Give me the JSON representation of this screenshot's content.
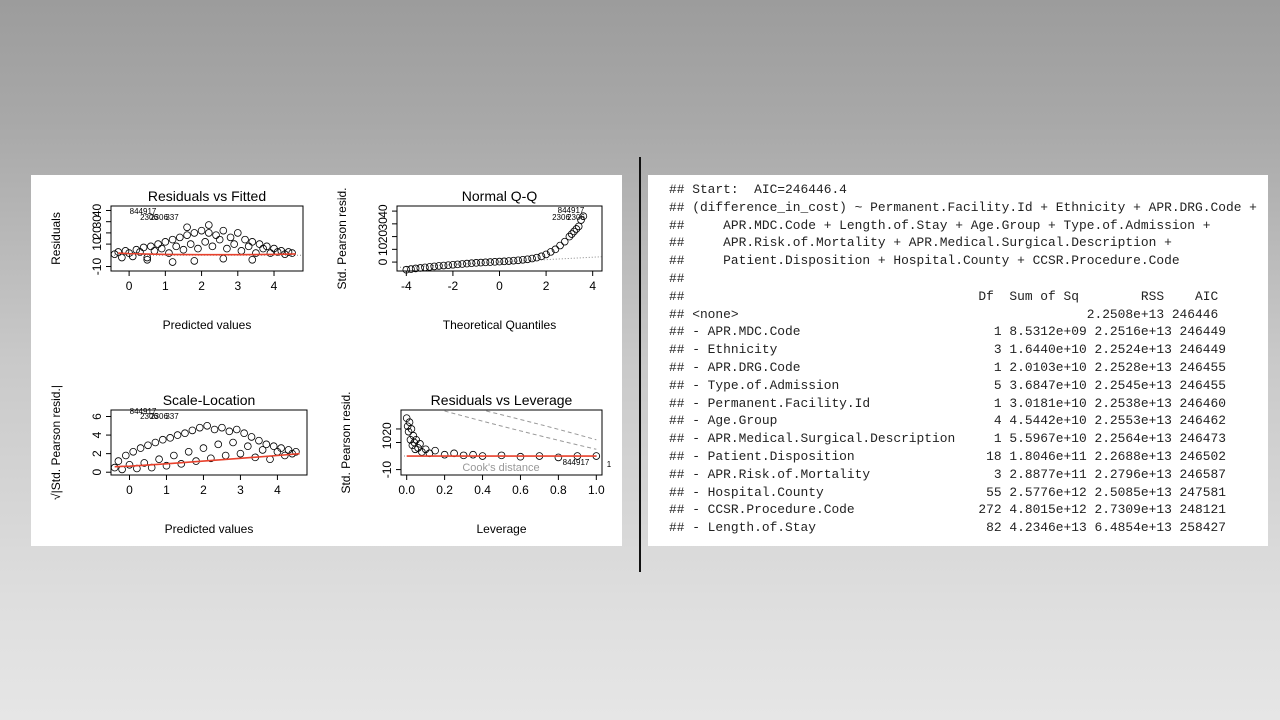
{
  "chart_data": [
    {
      "type": "scatter",
      "title": "Residuals vs Fitted",
      "xlabel": "Predicted values",
      "ylabel": "Residuals",
      "xlim": [
        -0.5,
        4.8
      ],
      "ylim": [
        -14,
        44
      ],
      "xticks": [
        0,
        1,
        2,
        3,
        4
      ],
      "xtick_labels": [
        "0",
        "1",
        "2",
        "3",
        "4"
      ],
      "yticks": [
        -10,
        10,
        20,
        30,
        40
      ],
      "ytick_labels": [
        "-10",
        "10",
        "20",
        "30",
        "40"
      ],
      "annotations": [
        "844917",
        "2306",
        "2306",
        "337"
      ],
      "reference_line": {
        "y": 0,
        "style": "dotted"
      },
      "smoother": {
        "color": "#e8412c",
        "x": [
          -0.3,
          0,
          1,
          2,
          3,
          4,
          4.6
        ],
        "y": [
          2,
          1.5,
          0.8,
          0.6,
          0.6,
          0.8,
          1.2
        ]
      },
      "points": {
        "x": [
          -0.4,
          -0.3,
          -0.2,
          -0.1,
          0,
          0.1,
          0.2,
          0.3,
          0.4,
          0.5,
          0.6,
          0.7,
          0.8,
          0.9,
          1,
          1.1,
          1.2,
          1.3,
          1.4,
          1.5,
          1.6,
          1.7,
          1.8,
          1.9,
          2,
          2.1,
          2.2,
          2.3,
          2.4,
          2.5,
          2.6,
          2.7,
          2.8,
          2.9,
          3,
          3.1,
          3.2,
          3.3,
          3.4,
          3.5,
          3.6,
          3.7,
          3.8,
          3.9,
          4,
          4.1,
          4.2,
          4.3,
          4.4,
          4.5,
          0.5,
          1.2,
          1.8,
          2.6,
          3.4,
          1.6,
          2.2
        ],
        "y": [
          1,
          3,
          -2,
          4,
          2,
          -1,
          5,
          3,
          7,
          -2,
          8,
          4,
          10,
          6,
          12,
          2,
          14,
          8,
          16,
          5,
          18,
          10,
          20,
          6,
          22,
          12,
          20,
          8,
          18,
          14,
          22,
          6,
          16,
          10,
          20,
          4,
          14,
          8,
          12,
          2,
          10,
          6,
          8,
          2,
          6,
          3,
          4,
          1,
          3,
          2,
          -4,
          -6,
          -5,
          -3,
          -4,
          25,
          27
        ]
      }
    },
    {
      "type": "scatter",
      "title": "Normal Q-Q",
      "xlabel": "Theoretical Quantiles",
      "ylabel": "Std. Pearson resid.",
      "xlim": [
        -4.4,
        4.4
      ],
      "ylim": [
        -7,
        44
      ],
      "xticks": [
        -4,
        -2,
        0,
        2,
        4
      ],
      "xtick_labels": [
        "-4",
        "-2",
        "0",
        "2",
        "4"
      ],
      "yticks": [
        0,
        10,
        20,
        30,
        40
      ],
      "ytick_labels": [
        "0",
        "10",
        "20",
        "30",
        "40"
      ],
      "annotations": [
        "844917",
        "2306",
        "2306"
      ],
      "reference_line": {
        "style": "dotted",
        "x": [
          -4.4,
          4.4
        ],
        "y": [
          -4.2,
          4.2
        ]
      },
      "points": {
        "x": [
          -4,
          -3.8,
          -3.6,
          -3.4,
          -3.2,
          -3,
          -2.8,
          -2.6,
          -2.4,
          -2.2,
          -2,
          -1.8,
          -1.6,
          -1.4,
          -1.2,
          -1,
          -0.8,
          -0.6,
          -0.4,
          -0.2,
          0,
          0.2,
          0.4,
          0.6,
          0.8,
          1,
          1.2,
          1.4,
          1.6,
          1.8,
          2,
          2.2,
          2.4,
          2.6,
          2.8,
          3,
          3.1,
          3.2,
          3.3,
          3.4,
          3.5,
          3.6
        ],
        "y": [
          -6,
          -5.5,
          -5,
          -4.6,
          -4.2,
          -3.8,
          -3.4,
          -3,
          -2.7,
          -2.4,
          -2.1,
          -1.8,
          -1.5,
          -1.2,
          -0.9,
          -0.6,
          -0.4,
          -0.2,
          0,
          0.2,
          0.4,
          0.6,
          0.8,
          1.1,
          1.4,
          1.8,
          2.2,
          2.8,
          3.5,
          4.5,
          6,
          8,
          10,
          13,
          16,
          20,
          22,
          24,
          26,
          28,
          33,
          36
        ]
      }
    },
    {
      "type": "scatter",
      "title": "Scale-Location",
      "xlabel": "Predicted values",
      "ylabel": "√|Std. Pearson resid.|",
      "xlim": [
        -0.5,
        4.8
      ],
      "ylim": [
        -0.3,
        6.7
      ],
      "xticks": [
        0,
        1,
        2,
        3,
        4
      ],
      "xtick_labels": [
        "0",
        "1",
        "2",
        "3",
        "4"
      ],
      "yticks": [
        0,
        2,
        4,
        6
      ],
      "ytick_labels": [
        "0",
        "2",
        "4",
        "6"
      ],
      "annotations": [
        "844917",
        "2306",
        "2306",
        "337"
      ],
      "smoother": {
        "color": "#e8412c",
        "x": [
          -0.4,
          0,
          1,
          2,
          3,
          4,
          4.6
        ],
        "y": [
          0.6,
          0.65,
          0.9,
          1.2,
          1.5,
          1.8,
          2
        ]
      },
      "points": {
        "x": [
          -0.4,
          -0.3,
          -0.2,
          -0.1,
          0,
          0.1,
          0.2,
          0.3,
          0.4,
          0.5,
          0.6,
          0.7,
          0.8,
          0.9,
          1,
          1.1,
          1.2,
          1.3,
          1.4,
          1.5,
          1.6,
          1.7,
          1.8,
          1.9,
          2,
          2.1,
          2.2,
          2.3,
          2.4,
          2.5,
          2.6,
          2.7,
          2.8,
          2.9,
          3,
          3.1,
          3.2,
          3.3,
          3.4,
          3.5,
          3.6,
          3.7,
          3.8,
          3.9,
          4,
          4.1,
          4.2,
          4.3,
          4.4,
          4.5
        ],
        "y": [
          0.5,
          1.2,
          0.3,
          1.8,
          0.8,
          2.2,
          0.4,
          2.6,
          1.0,
          2.9,
          0.5,
          3.2,
          1.4,
          3.5,
          0.7,
          3.7,
          1.8,
          4.0,
          0.9,
          4.2,
          2.2,
          4.5,
          1.2,
          4.8,
          2.6,
          5.0,
          1.5,
          4.6,
          3.0,
          4.8,
          1.8,
          4.4,
          3.2,
          4.6,
          2.0,
          4.2,
          2.8,
          3.8,
          1.6,
          3.4,
          2.4,
          3.0,
          1.4,
          2.8,
          2.2,
          2.6,
          1.8,
          2.4,
          2.0,
          2.2
        ]
      }
    },
    {
      "type": "scatter",
      "title": "Residuals vs Leverage",
      "xlabel": "Leverage",
      "ylabel": "Std. Pearson resid.",
      "xlim": [
        -0.03,
        1.03
      ],
      "ylim": [
        -14,
        34
      ],
      "xticks": [
        0,
        0.2,
        0.4,
        0.6,
        0.8,
        1
      ],
      "xtick_labels": [
        "0.0",
        "0.2",
        "0.4",
        "0.6",
        "0.8",
        "1.0"
      ],
      "yticks": [
        -10,
        10,
        20
      ],
      "ytick_labels": [
        "-10",
        "10",
        "20"
      ],
      "annotations": [
        "Cook's distance",
        "844917",
        "1"
      ],
      "reference_line": {
        "y": 0,
        "style": "dotted"
      },
      "smoother": {
        "color": "#e8412c",
        "x": [
          0,
          0.2,
          0.4,
          0.6,
          0.8,
          1
        ],
        "y": [
          0,
          0,
          0,
          0,
          0,
          0
        ]
      },
      "points": {
        "x": [
          0,
          0.005,
          0.01,
          0.015,
          0.02,
          0.025,
          0.03,
          0.035,
          0.04,
          0.045,
          0.05,
          0.06,
          0.07,
          0.08,
          0.1,
          0.12,
          0.15,
          0.2,
          0.25,
          0.3,
          0.35,
          0.4,
          0.5,
          0.6,
          0.7,
          0.8,
          0.9,
          1
        ],
        "y": [
          28,
          22,
          18,
          25,
          12,
          20,
          8,
          15,
          10,
          5,
          12,
          6,
          9,
          3,
          5,
          2,
          4,
          1,
          2,
          0.5,
          1,
          0,
          0.5,
          -0.5,
          0,
          -1,
          0,
          0
        ]
      }
    }
  ],
  "console": {
    "lines": [
      "## Start:  AIC=246446.4",
      "## (difference_in_cost) ~ Permanent.Facility.Id + Ethnicity + APR.DRG.Code +",
      "##     APR.MDC.Code + Length.of.Stay + Age.Group + Type.of.Admission +",
      "##     APR.Risk.of.Mortality + APR.Medical.Surgical.Description +",
      "##     Patient.Disposition + Hospital.County + CCSR.Procedure.Code",
      "##",
      "##                                      Df  Sum of Sq        RSS    AIC",
      "## <none>                                             2.2508e+13 246446",
      "## - APR.MDC.Code                         1 8.5312e+09 2.2516e+13 246449",
      "## - Ethnicity                            3 1.6440e+10 2.2524e+13 246449",
      "## - APR.DRG.Code                         1 2.0103e+10 2.2528e+13 246455",
      "## - Type.of.Admission                    5 3.6847e+10 2.2545e+13 246455",
      "## - Permanent.Facility.Id                1 3.0181e+10 2.2538e+13 246460",
      "## - Age.Group                            4 4.5442e+10 2.2553e+13 246462",
      "## - APR.Medical.Surgical.Description     1 5.5967e+10 2.2564e+13 246473",
      "## - Patient.Disposition                 18 1.8046e+11 2.2688e+13 246502",
      "## - APR.Risk.of.Mortality                3 2.8877e+11 2.2796e+13 246587",
      "## - Hospital.County                     55 2.5776e+12 2.5085e+13 247581",
      "## - CCSR.Procedure.Code                272 4.8015e+12 2.7309e+13 248121",
      "## - Length.of.Stay                      82 4.2346e+13 6.4854e+13 258427"
    ]
  }
}
